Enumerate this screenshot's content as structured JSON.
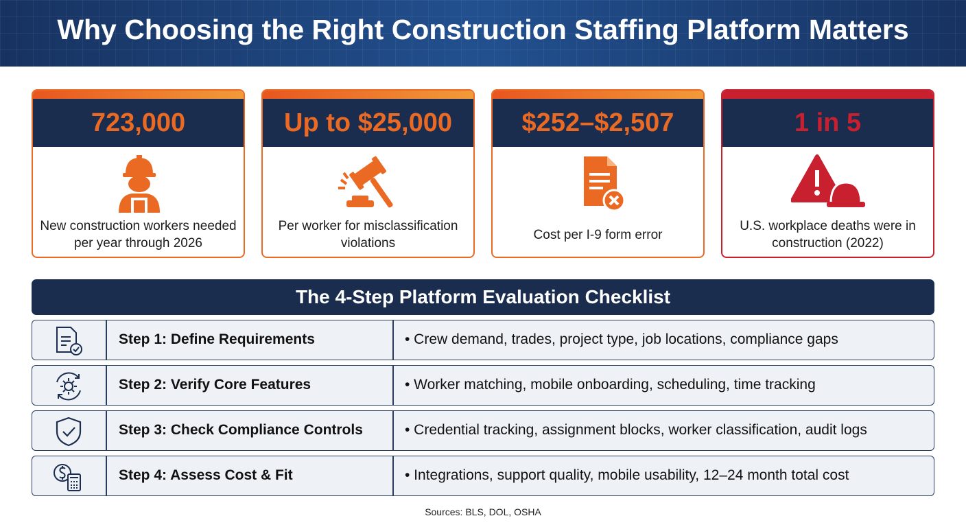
{
  "header": {
    "title": "Why Choosing the Right Construction Staffing Platform Matters"
  },
  "stats": [
    {
      "value": "723,000",
      "description": "New construction workers needed per year through 2026"
    },
    {
      "value": "Up to $25,000",
      "description": "Per worker for misclassification violations"
    },
    {
      "value": "$252–$2,507",
      "description": "Cost per I-9 form error"
    },
    {
      "value": "1 in 5",
      "description": "U.S. workplace deaths were in construction (2022)"
    }
  ],
  "checklist": {
    "title": "The 4-Step Platform Evaluation Checklist",
    "steps": [
      {
        "title": "Step 1: Define Requirements",
        "detail": "• Crew demand, trades, project type, job locations, compliance gaps"
      },
      {
        "title": "Step 2: Verify Core Features",
        "detail": "• Worker matching, mobile onboarding, scheduling, time tracking"
      },
      {
        "title": "Step 3: Check Compliance Controls",
        "detail": "• Credential tracking, assignment blocks, worker classification, audit logs"
      },
      {
        "title": "Step 4: Assess Cost & Fit",
        "detail": "• Integrations, support quality, mobile usability, 12–24 month total cost"
      }
    ]
  },
  "sources": "Sources: BLS, DOL, OSHA"
}
